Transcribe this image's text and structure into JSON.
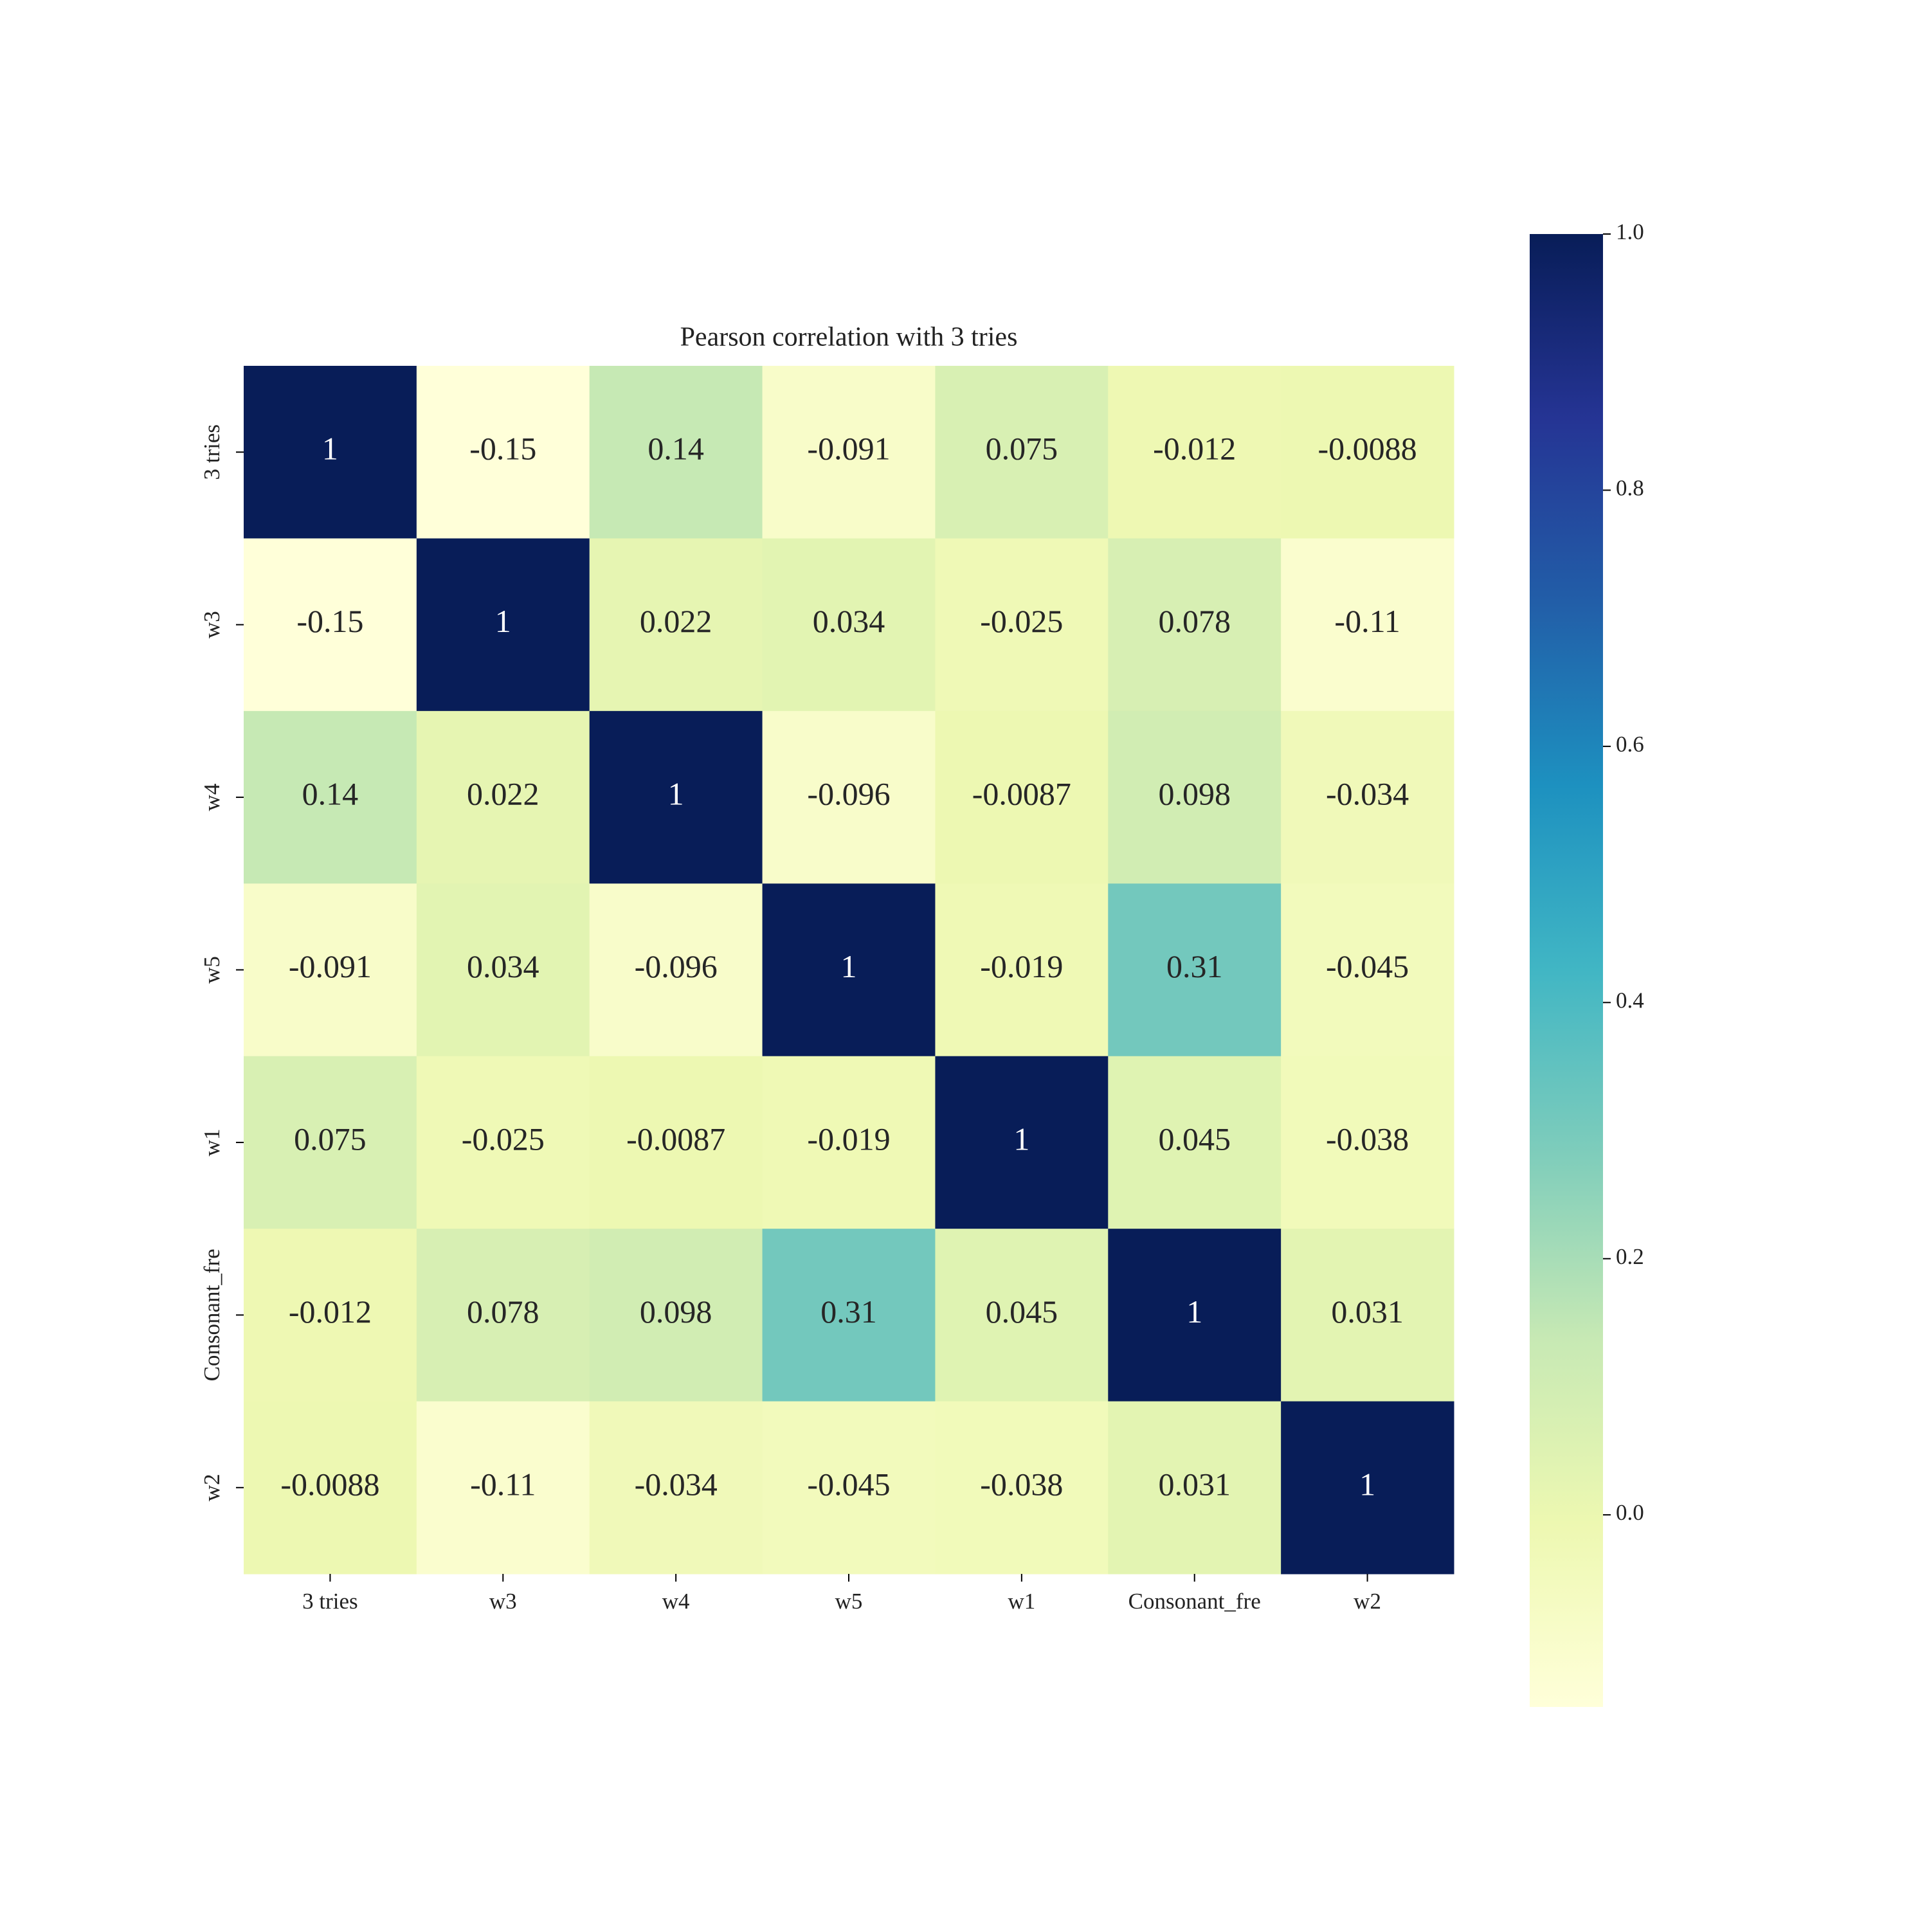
{
  "chart_data": {
    "type": "heatmap",
    "title": "Pearson correlation with 3 tries",
    "categories": [
      "3 tries",
      "w3",
      "w4",
      "w5",
      "w1",
      "Consonant_fre",
      "w2"
    ],
    "z": [
      [
        1,
        -0.15,
        0.14,
        -0.091,
        0.075,
        -0.012,
        -0.0088
      ],
      [
        -0.15,
        1,
        0.022,
        0.034,
        -0.025,
        0.078,
        -0.11
      ],
      [
        0.14,
        0.022,
        1,
        -0.096,
        -0.0087,
        0.098,
        -0.034
      ],
      [
        -0.091,
        0.034,
        -0.096,
        1,
        -0.019,
        0.31,
        -0.045
      ],
      [
        0.075,
        -0.025,
        -0.0087,
        -0.019,
        1,
        0.045,
        -0.038
      ],
      [
        -0.012,
        0.078,
        0.098,
        0.31,
        0.045,
        1,
        0.031
      ],
      [
        -0.0088,
        -0.11,
        -0.034,
        -0.045,
        -0.038,
        0.031,
        1
      ]
    ],
    "colormap": "YlGnBu",
    "clim": [
      -0.15,
      1
    ],
    "cticks": [
      {
        "value": 0,
        "label": "0.0"
      },
      0.2,
      0.4,
      0.6,
      0.8,
      {
        "value": 1,
        "label": "1.0"
      }
    ]
  }
}
